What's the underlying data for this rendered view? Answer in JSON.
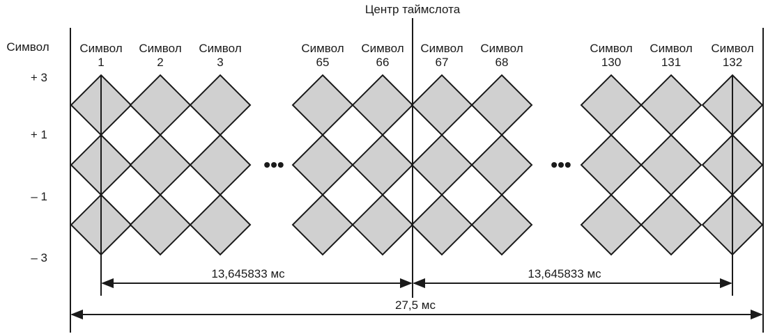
{
  "title": "Центр таймслота",
  "level_axis": {
    "label": "Символ",
    "levels": [
      "+ 3",
      "+ 1",
      "– 1",
      "– 3"
    ]
  },
  "symbols": [
    {
      "word": "Символ",
      "number": "1"
    },
    {
      "word": "Символ",
      "number": "2"
    },
    {
      "word": "Символ",
      "number": "3"
    },
    {
      "word": "Символ",
      "number": "65"
    },
    {
      "word": "Символ",
      "number": "66"
    },
    {
      "word": "Символ",
      "number": "67"
    },
    {
      "word": "Символ",
      "number": "68"
    },
    {
      "word": "Символ",
      "number": "130"
    },
    {
      "word": "Символ",
      "number": "131"
    },
    {
      "word": "Символ",
      "number": "132"
    }
  ],
  "gaps": [
    "•••",
    "•••"
  ],
  "durations": {
    "first_half": "13,645833 мс",
    "second_half": "13,645833 мс",
    "total": "27,5 мс"
  },
  "colors": {
    "diamond_fill": "#d0d0d0",
    "line": "#1a1a1a"
  }
}
